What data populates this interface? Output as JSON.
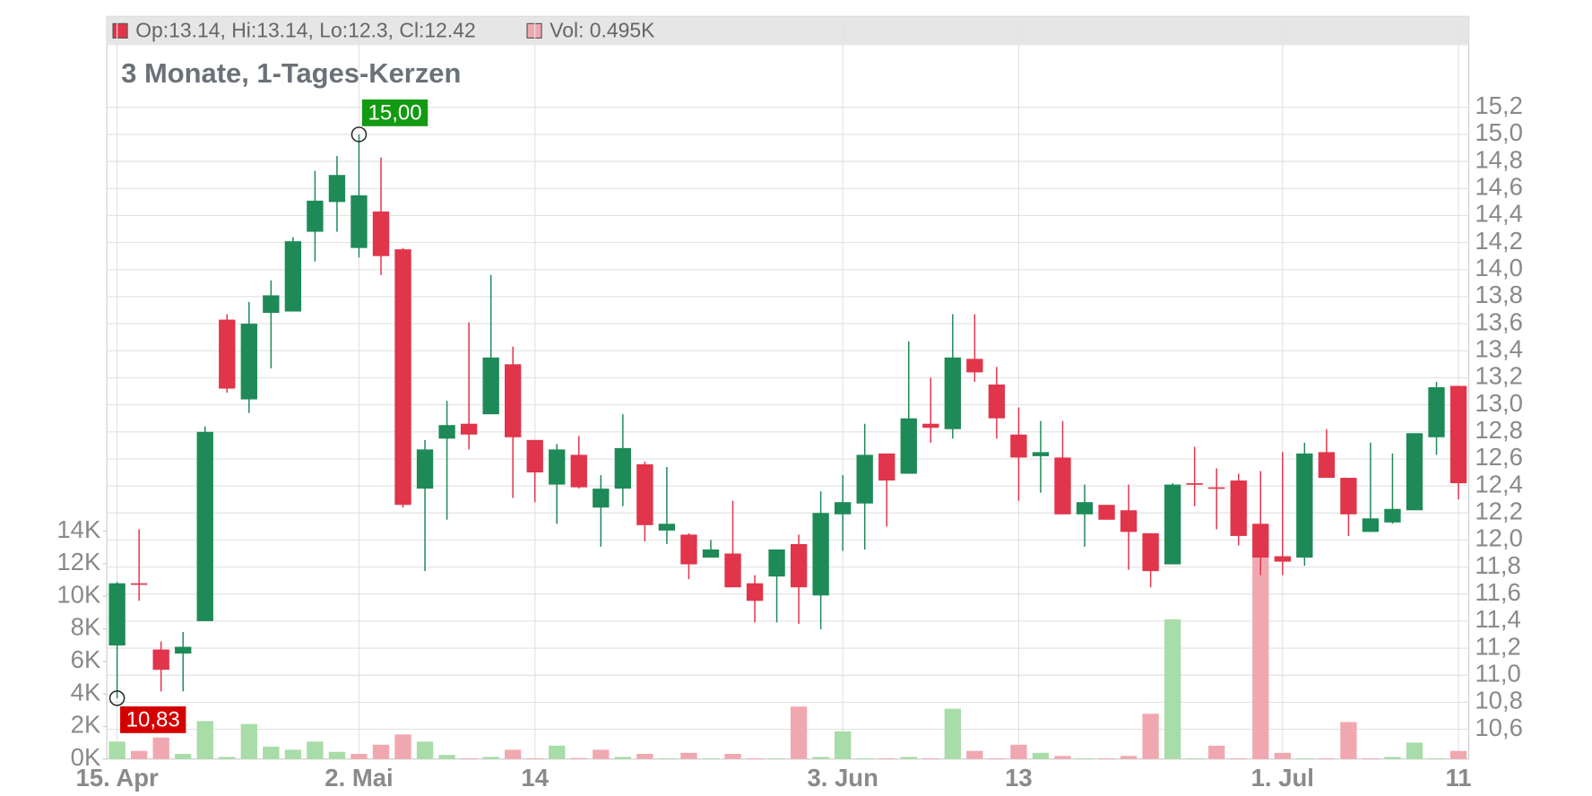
{
  "chart_data": {
    "type": "candlestick",
    "title": "3 Monate, 1-Tages-Kerzen",
    "legend": [
      {
        "label": "Op:13.14, Hi:13.14, Lo:12.3, Cl:12.42",
        "color": "#e0354a"
      },
      {
        "label": "Vol: 0.495K",
        "color": "#f0a8b0"
      }
    ],
    "categories": [
      "15. Apr",
      null,
      null,
      null,
      null,
      null,
      null,
      null,
      null,
      null,
      null,
      "2. Mai",
      null,
      null,
      null,
      null,
      null,
      null,
      null,
      "14",
      null,
      null,
      null,
      null,
      null,
      null,
      null,
      null,
      null,
      null,
      null,
      null,
      null,
      "3. Jun",
      null,
      null,
      null,
      null,
      null,
      null,
      null,
      "13",
      null,
      null,
      null,
      null,
      null,
      null,
      null,
      null,
      null,
      null,
      null,
      "1. Jul",
      null,
      null,
      null,
      null,
      null,
      null,
      null,
      "11"
    ],
    "open": [
      11.22,
      11.68,
      11.19,
      11.16,
      11.4,
      13.63,
      13.04,
      13.68,
      13.69,
      14.28,
      14.5,
      14.16,
      14.43,
      14.15,
      12.38,
      12.75,
      12.86,
      12.93,
      13.3,
      12.74,
      12.41,
      12.63,
      12.24,
      12.38,
      12.56,
      12.07,
      12.04,
      11.87,
      11.9,
      11.68,
      11.73,
      11.97,
      11.59,
      12.19,
      12.27,
      12.64,
      12.49,
      12.86,
      12.82,
      13.34,
      13.15,
      12.78,
      12.62,
      12.61,
      12.19,
      12.26,
      12.22,
      12.05,
      11.82,
      12.42,
      12.39,
      12.44,
      12.12,
      11.88,
      11.87,
      12.65,
      12.46,
      12.06,
      12.13,
      12.22,
      12.76,
      13.14
    ],
    "high": [
      11.69,
      12.08,
      11.25,
      11.32,
      12.84,
      13.67,
      13.76,
      13.92,
      14.24,
      14.73,
      14.84,
      15.0,
      14.83,
      14.16,
      12.74,
      13.03,
      13.61,
      13.96,
      13.43,
      12.74,
      12.71,
      12.77,
      12.48,
      12.93,
      12.58,
      12.54,
      12.05,
      12.0,
      12.29,
      11.74,
      11.93,
      12.04,
      12.36,
      12.48,
      12.86,
      12.64,
      13.47,
      13.2,
      13.67,
      13.67,
      13.28,
      12.98,
      12.88,
      12.88,
      12.41,
      12.26,
      12.41,
      12.05,
      12.42,
      12.69,
      12.53,
      12.49,
      12.51,
      12.65,
      12.72,
      12.82,
      12.46,
      12.72,
      12.64,
      12.79,
      13.17,
      13.14
    ],
    "low": [
      10.83,
      11.55,
      10.88,
      10.88,
      11.4,
      13.09,
      12.94,
      13.27,
      13.69,
      14.06,
      14.28,
      14.09,
      13.96,
      12.24,
      11.77,
      12.15,
      12.67,
      12.93,
      12.31,
      12.28,
      12.12,
      12.38,
      11.95,
      12.25,
      11.99,
      11.97,
      11.71,
      11.87,
      11.65,
      11.39,
      11.39,
      11.38,
      11.34,
      11.92,
      11.93,
      12.1,
      12.49,
      12.72,
      12.75,
      13.17,
      12.75,
      12.29,
      12.35,
      12.19,
      11.95,
      12.15,
      11.78,
      11.65,
      11.82,
      12.25,
      12.08,
      11.96,
      11.74,
      11.74,
      11.81,
      12.46,
      12.03,
      12.06,
      12.12,
      12.22,
      12.63,
      12.3
    ],
    "close": [
      11.68,
      11.67,
      11.04,
      11.21,
      12.8,
      13.12,
      13.6,
      13.81,
      14.21,
      14.51,
      14.7,
      14.55,
      14.1,
      12.26,
      12.67,
      12.85,
      12.78,
      13.35,
      12.76,
      12.5,
      12.67,
      12.39,
      12.38,
      12.68,
      12.11,
      12.12,
      11.82,
      11.93,
      11.65,
      11.55,
      11.93,
      11.65,
      12.2,
      12.28,
      12.63,
      12.44,
      12.9,
      12.83,
      13.35,
      13.24,
      12.9,
      12.61,
      12.65,
      12.19,
      12.28,
      12.15,
      12.06,
      11.77,
      12.41,
      12.41,
      12.38,
      12.03,
      11.87,
      11.84,
      12.64,
      12.46,
      12.19,
      12.16,
      12.23,
      12.79,
      13.13,
      12.42
    ],
    "volume": [
      1070,
      500,
      1320,
      315,
      2330,
      130,
      2150,
      760,
      570,
      1070,
      440,
      315,
      880,
      1510,
      1070,
      250,
      50,
      130,
      570,
      50,
      820,
      60,
      570,
      130,
      315,
      50,
      380,
      50,
      315,
      50,
      50,
      3220,
      130,
      1700,
      50,
      50,
      130,
      50,
      3090,
      500,
      50,
      880,
      380,
      190,
      50,
      50,
      190,
      2780,
      8580,
      50,
      820,
      50,
      12370,
      380,
      50,
      50,
      2270,
      50,
      130,
      1010,
      50,
      495
    ],
    "up_color": "#1e8a57",
    "down_color": "#e0354a",
    "volume_up_color": "#a8dca8",
    "volume_down_color": "#f0a8b0",
    "annotations": [
      {
        "index": 11,
        "value": 15.0,
        "label": "15,00",
        "color": "#139a13"
      },
      {
        "index": 0,
        "value": 10.83,
        "label": "10,83",
        "color": "#d40000"
      }
    ],
    "ylim": [
      10.38,
      15.66
    ],
    "yticks": [
      {
        "value": 10.6,
        "label": "10,6"
      },
      {
        "value": 10.8,
        "label": "10,8"
      },
      {
        "value": 11.0,
        "label": "11,0"
      },
      {
        "value": 11.2,
        "label": "11,2"
      },
      {
        "value": 11.4,
        "label": "11,4"
      },
      {
        "value": 11.6,
        "label": "11,6"
      },
      {
        "value": 11.8,
        "label": "11,8"
      },
      {
        "value": 12.0,
        "label": "12,0"
      },
      {
        "value": 12.2,
        "label": "12,2"
      },
      {
        "value": 12.4,
        "label": "12,4"
      },
      {
        "value": 12.6,
        "label": "12,6"
      },
      {
        "value": 12.8,
        "label": "12,8"
      },
      {
        "value": 13.0,
        "label": "13,0"
      },
      {
        "value": 13.2,
        "label": "13,2"
      },
      {
        "value": 13.4,
        "label": "13,4"
      },
      {
        "value": 13.6,
        "label": "13,6"
      },
      {
        "value": 13.8,
        "label": "13,8"
      },
      {
        "value": 14.0,
        "label": "14,0"
      },
      {
        "value": 14.2,
        "label": "14,2"
      },
      {
        "value": 14.4,
        "label": "14,4"
      },
      {
        "value": 14.6,
        "label": "14,6"
      },
      {
        "value": 14.8,
        "label": "14,8"
      },
      {
        "value": 15.0,
        "label": "15,0"
      },
      {
        "value": 15.2,
        "label": "15,2"
      }
    ],
    "y2lim": [
      0,
      43850
    ],
    "y2ticks": [
      {
        "value": 0,
        "label": "0K"
      },
      {
        "value": 2000,
        "label": "2K"
      },
      {
        "value": 4000,
        "label": "4K"
      },
      {
        "value": 6000,
        "label": "6K"
      },
      {
        "value": 8000,
        "label": "8K"
      },
      {
        "value": 10000,
        "label": "10K"
      },
      {
        "value": 12000,
        "label": "12K"
      },
      {
        "value": 14000,
        "label": "14K"
      }
    ],
    "grid": true
  }
}
